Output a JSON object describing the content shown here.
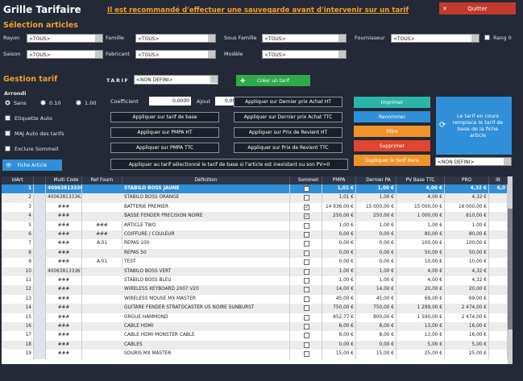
{
  "header": {
    "title": "Grille Tarifaire",
    "warning": "Il est recommandé d'effectuer une sauvegarde avant d'intervenir sur un tarif",
    "quit": "Quitter"
  },
  "selection": {
    "title": "Sélection articles",
    "fields": [
      {
        "label": "Rayon",
        "value": "<TOUS>"
      },
      {
        "label": "Famille",
        "value": "<TOUS>"
      },
      {
        "label": "Sous Famille",
        "value": "<TOUS>"
      },
      {
        "label": "Fournisseur",
        "value": "<TOUS>"
      },
      {
        "label": "Saison",
        "value": "<TOUS>"
      },
      {
        "label": "Fabricant",
        "value": "<TOUS>"
      },
      {
        "label": "Modèle",
        "value": "<TOUS>"
      }
    ],
    "rang": {
      "label": "Rang 0",
      "checked": false
    }
  },
  "gestion": {
    "title": "Gestion tarif",
    "tarif_label": "TARIF",
    "tarif_value": "<NON DEFINI>",
    "create": "Créer un tarif",
    "arrondi": {
      "label": "Arrondi",
      "options": [
        "Sans",
        "0.10",
        "1.00"
      ],
      "selected": 0
    },
    "coefficient": {
      "label": "Coefficient",
      "value": "0,0000"
    },
    "ajout": {
      "label": "Ajout",
      "value": "0,00 €"
    },
    "checks": [
      {
        "label": "Etiquette Auto",
        "checked": false
      },
      {
        "label": "MAJ Auto des tarifs",
        "checked": false
      },
      {
        "label": "Exclure Sommeil",
        "checked": false
      }
    ],
    "apply_left": [
      "Appliquer sur tarif de base",
      "Appliquer sur PMPA HT",
      "Appliquer sur PMPA TTC"
    ],
    "apply_mid": [
      "Appliquer sur Dernier prix Achat HT",
      "Appliquer sur Dernier prix Achat TTC",
      "Appliquer sur Prix de Revient HT",
      "Appliquer sur Prix de Revient TTC"
    ],
    "actions": [
      "Imprimer",
      "Renommer",
      "Filtre",
      "Supprimer",
      "Dupliquer le tarif dans"
    ],
    "duplicate_target": "<NON DEFINI>",
    "replace": "Le tarif en cours remplace le tarif de base de la fiche article",
    "fiche": "Fiche Article",
    "apply_base": "Appliquer au tarif sélectionné le tarif de base si l'article est inexistant ou son PV=0"
  },
  "table": {
    "columns": [
      "IdArt",
      "Multi Code",
      "Ref Fourn",
      "Définition",
      "Sommeil",
      "PMPA",
      "Dernier PA",
      "PV Base TTC",
      "PRO",
      "IB"
    ],
    "selected_row": 0,
    "rows": [
      [
        "1",
        "4006381333627",
        null,
        "STABILO BOSS JAUNE",
        false,
        "1,01 €",
        "1,00 €",
        "4,00 €",
        "4,32 €",
        "6,0"
      ],
      [
        "2",
        "4006381333627",
        null,
        "STABILO BOSS ORANGE",
        false,
        "1,01 €",
        "1,00 €",
        "4,00 €",
        "4,32 €",
        null
      ],
      [
        "3",
        "###",
        null,
        "BATTERIE PREMIER",
        true,
        "14 936,00 €",
        "15 000,00 €",
        "15 000,00 €",
        "16 000,00 €",
        null
      ],
      [
        "4",
        "###",
        null,
        "BASSE FENDER PRECISION NOIRE",
        true,
        "250,00 €",
        "250,00 €",
        "1 000,00 €",
        "810,00 €",
        null
      ],
      [
        "5",
        "###",
        "###",
        "ARTICLE TWO",
        false,
        "1,00 €",
        "1,00 €",
        "1,00 €",
        "1,00 €",
        null
      ],
      [
        "6",
        "###",
        "###",
        "COIFFURE / COULEUR",
        false,
        "0,00 €",
        "0,00 €",
        "80,00 €",
        "80,00 €",
        null
      ],
      [
        "7",
        "###",
        "A.01",
        "REPAS 100",
        false,
        "0,00 €",
        "0,00 €",
        "100,00 €",
        "100,00 €",
        null
      ],
      [
        "8",
        "###",
        null,
        "REPAS 50",
        false,
        "0,00 €",
        "0,00 €",
        "50,00 €",
        "50,00 €",
        null
      ],
      [
        "9",
        "###",
        "A.01",
        "TEST",
        false,
        "0,00 €",
        "0,00 €",
        "10,00 €",
        "10,00 €",
        null
      ],
      [
        "10",
        "4006381333671",
        null,
        "STABILO BOSS VERT",
        false,
        "1,00 €",
        "1,00 €",
        "4,00 €",
        "4,32 €",
        null
      ],
      [
        "11",
        "###",
        null,
        "STABILO BOSS BLEU",
        false,
        "1,00 €",
        "1,00 €",
        "4,00 €",
        "4,32 €",
        null
      ],
      [
        "12",
        "###",
        null,
        "WIRELESS KEYBOARD 2007 V20",
        false,
        "14,00 €",
        "14,00 €",
        "20,00 €",
        "20,00 €",
        null
      ],
      [
        "13",
        "###",
        null,
        "WIRELESS MOUSE MX MASTER",
        false,
        "45,00 €",
        "45,00 €",
        "69,00 €",
        "69,00 €",
        null
      ],
      [
        "14",
        "###",
        null,
        "GUITARE FENDER STRATOCASTER US NOIRE SUNBURST",
        false,
        "750,00 €",
        "750,00 €",
        "1 299,00 €",
        "2 474,00 €",
        null
      ],
      [
        "15",
        "###",
        null,
        "ORGUE HAMMOND",
        false,
        "852,77 €",
        "800,00 €",
        "1 590,00 €",
        "2 474,00 €",
        null
      ],
      [
        "16",
        "###",
        null,
        "CABLE HDMI",
        false,
        "8,00 €",
        "8,00 €",
        "13,00 €",
        "16,00 €",
        null
      ],
      [
        "17",
        "###",
        null,
        "CABLE HDMI MONSTER CABLE",
        false,
        "8,00 €",
        "8,00 €",
        "13,00 €",
        "16,00 €",
        null
      ],
      [
        "18",
        "###",
        null,
        "CABLES",
        false,
        "0,00 €",
        "0,00 €",
        "5,00 €",
        "5,00 €",
        null
      ],
      [
        "19",
        "###",
        null,
        "SOURIS MX MASTER",
        false,
        "15,00 €",
        "15,00 €",
        "25,00 €",
        "25,00 €",
        null
      ]
    ]
  }
}
